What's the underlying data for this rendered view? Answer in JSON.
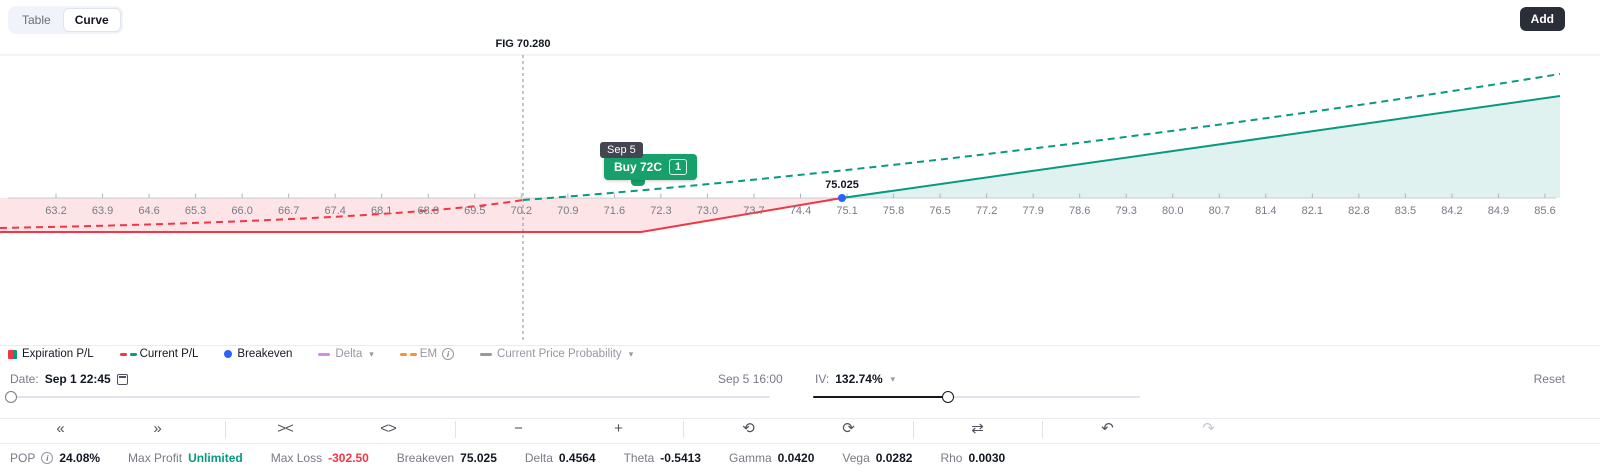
{
  "header": {
    "view_toggle": {
      "options": [
        "Table",
        "Curve"
      ],
      "selected": "Curve"
    },
    "add_button": "Add"
  },
  "chart": {
    "fig_label": "FIG 70.280",
    "breakeven_label": "75.025",
    "tooltip": {
      "date": "Sep 5",
      "leg": "Buy 72C",
      "quantity": "1"
    }
  },
  "chart_data": {
    "type": "line",
    "title": "FIG 70.280",
    "current_price": 70.28,
    "x_tick_labels": [
      "63.2",
      "63.9",
      "64.6",
      "65.3",
      "66.0",
      "66.7",
      "67.4",
      "68.1",
      "68.8",
      "69.5",
      "70.2",
      "70.9",
      "71.6",
      "72.3",
      "73.0",
      "73.7",
      "74.4",
      "75.1",
      "75.8",
      "76.5",
      "77.2",
      "77.9",
      "78.6",
      "79.3",
      "80.0",
      "80.7",
      "81.4",
      "82.1",
      "82.8",
      "83.5",
      "84.2",
      "84.9",
      "85.6"
    ],
    "x_range": [
      62.9,
      85.9
    ],
    "series": [
      {
        "name": "Expiration P/L",
        "style": "solid",
        "colors": {
          "negative": "#f23645",
          "positive": "#089981"
        },
        "points": [
          {
            "price": 62.9,
            "pl": -302.5
          },
          {
            "price": 72.0,
            "pl": -302.5
          },
          {
            "price": 75.025,
            "pl": 0
          },
          {
            "price": 85.9,
            "pl": 1090
          }
        ]
      },
      {
        "name": "Current P/L",
        "style": "dashed",
        "colors": {
          "negative": "#f23645",
          "positive": "#089981"
        },
        "points": [
          {
            "price": 62.9,
            "pl": -267
          },
          {
            "price": 70.28,
            "pl": 0
          },
          {
            "price": 75.0,
            "pl": 170
          },
          {
            "price": 85.9,
            "pl": 1100
          }
        ]
      }
    ],
    "breakeven": {
      "price": 75.025,
      "label": "75.025",
      "color": "#2962ff"
    },
    "max_loss": -302.5,
    "annotations": {
      "leg_tooltip": "Sep 5 / Buy 72C x1",
      "current_price_line": "FIG 70.280"
    },
    "legend_position": "bottom",
    "grid": false
  },
  "legend": {
    "items": [
      {
        "label": "Expiration P/L",
        "icon": "split-square",
        "colors": [
          "#f23645",
          "#089981"
        ],
        "active": true
      },
      {
        "label": "Current P/L",
        "icon": "double-dash",
        "colors": [
          "#f23645",
          "#089981"
        ],
        "active": true
      },
      {
        "label": "Breakeven",
        "icon": "dot",
        "colors": [
          "#2962ff"
        ],
        "active": true
      },
      {
        "label": "Delta",
        "icon": "dash",
        "colors": [
          "#d38ce3"
        ],
        "active": false,
        "caret": true
      },
      {
        "label": "EM",
        "icon": "double-dash",
        "colors": [
          "#f7923a",
          "#f7923a"
        ],
        "active": false,
        "info": true
      },
      {
        "label": "Current Price Probability",
        "icon": "dash",
        "colors": [
          "#9598a1"
        ],
        "active": false,
        "caret": true
      }
    ]
  },
  "controls": {
    "date_label": "Date:",
    "date_value": "Sep 1 22:45",
    "range_end_label": "Sep 5 16:00",
    "iv_label": "IV:",
    "iv_value": "132.74%",
    "reset_label": "Reset"
  },
  "toolbar": {
    "buttons": [
      {
        "name": "skip-to-start",
        "glyph": "«"
      },
      {
        "name": "skip-to-end",
        "glyph": "»"
      },
      {
        "name": "compress-horizontal",
        "glyph": "><"
      },
      {
        "name": "expand-horizontal",
        "glyph": "<>"
      },
      {
        "name": "zoom-out",
        "glyph": "−"
      },
      {
        "name": "zoom-in",
        "glyph": "+"
      },
      {
        "name": "step-time-back",
        "glyph": "⟲"
      },
      {
        "name": "step-time-forward",
        "glyph": "⟳"
      },
      {
        "name": "cycle-swap",
        "glyph": "⇄"
      },
      {
        "name": "undo",
        "glyph": "↶",
        "disabled": false
      },
      {
        "name": "redo",
        "glyph": "↷",
        "disabled": true
      }
    ]
  },
  "stats": [
    {
      "label": "POP",
      "value": "24.08%",
      "info": true,
      "value_color": "#131722"
    },
    {
      "label": "Max Profit",
      "value": "Unlimited",
      "value_color": "#089981"
    },
    {
      "label": "Max Loss",
      "value": "-302.50",
      "value_color": "#f23645"
    },
    {
      "label": "Breakeven",
      "value": "75.025",
      "value_color": "#131722"
    },
    {
      "label": "Delta",
      "value": "0.4564",
      "value_color": "#131722"
    },
    {
      "label": "Theta",
      "value": "-0.5413",
      "value_color": "#131722"
    },
    {
      "label": "Gamma",
      "value": "0.0420",
      "value_color": "#131722"
    },
    {
      "label": "Vega",
      "value": "0.0282",
      "value_color": "#131722"
    },
    {
      "label": "Rho",
      "value": "0.0030",
      "value_color": "#131722"
    }
  ],
  "colors": {
    "red": "#f23645",
    "green": "#089981",
    "blue": "#2962ff",
    "text": "#131722",
    "muted": "#787b86",
    "grid": "#e0e3eb"
  }
}
